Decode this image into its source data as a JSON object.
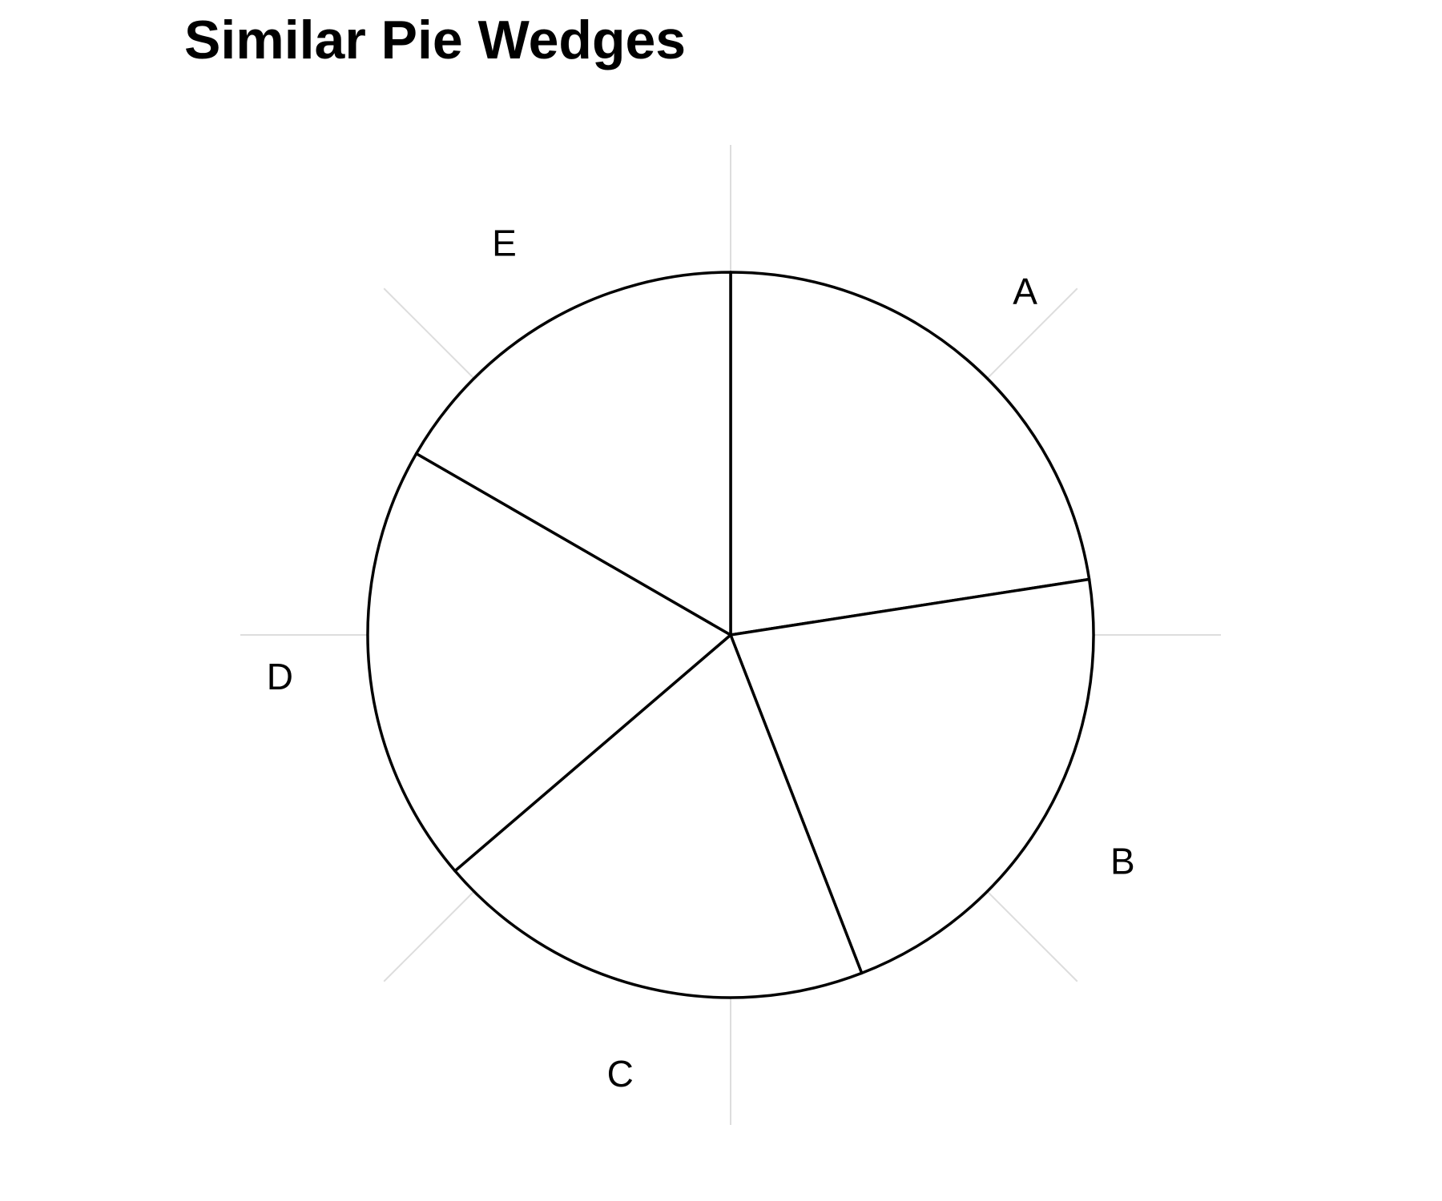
{
  "chart_data": {
    "type": "pie",
    "title": "Similar Pie Wedges",
    "categories": [
      "A",
      "B",
      "C",
      "D",
      "E"
    ],
    "values": [
      23,
      22,
      20,
      20,
      17
    ],
    "start_angle": "12 o'clock",
    "direction": "clockwise",
    "grid": true,
    "legend": "none",
    "colors": {
      "fill": "#ffffff",
      "stroke": "#000000",
      "grid": "#dddddd",
      "background": "#ffffff"
    }
  }
}
